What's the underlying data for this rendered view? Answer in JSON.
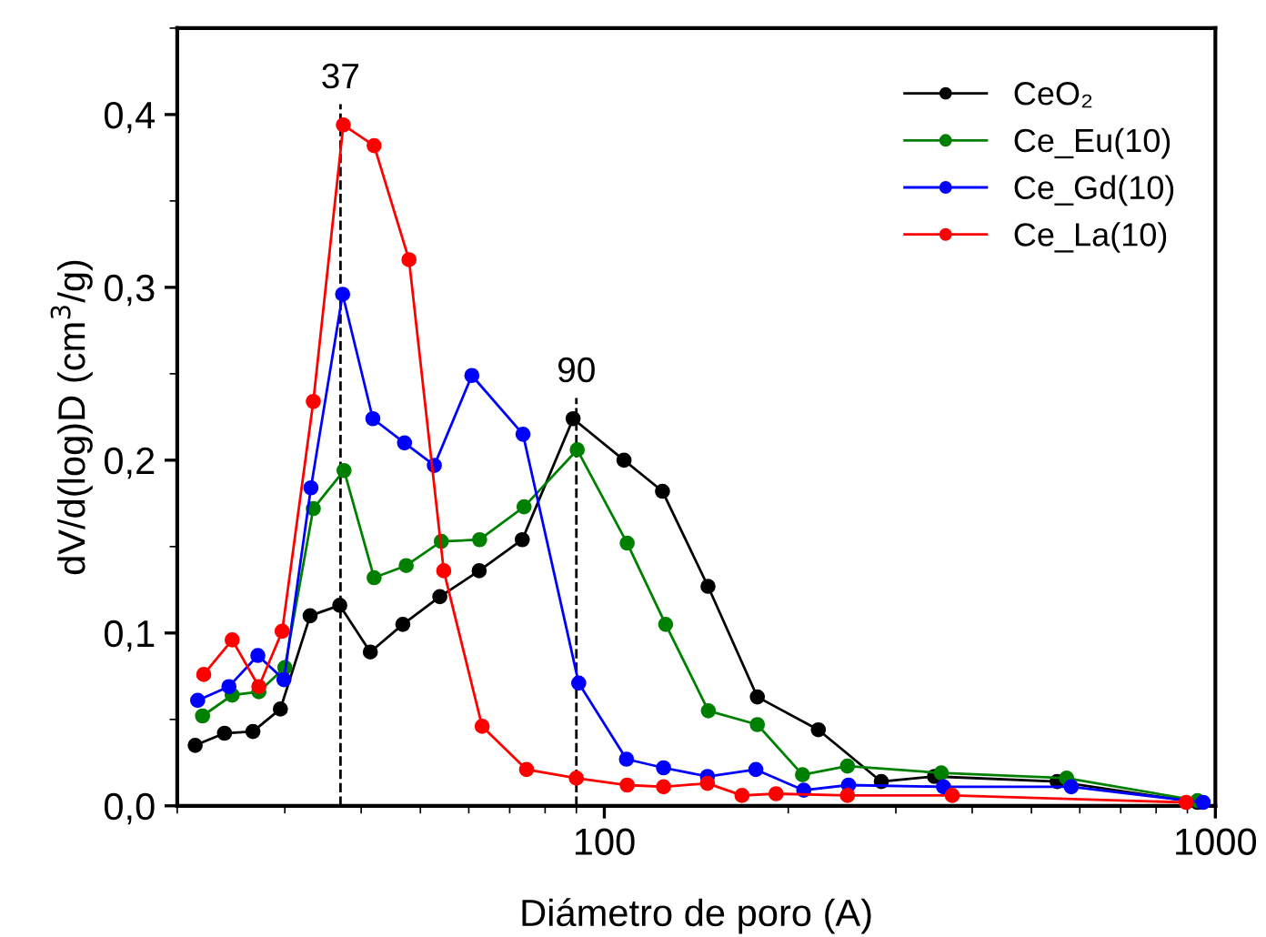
{
  "chart_data": {
    "type": "line",
    "xlabel": "Diámetro de poro (A)",
    "ylabel": "dV/d(log)D (cm$^{3}$/g)",
    "log": "x",
    "marker": "circle",
    "grid": false,
    "legend": "top right",
    "xlim": [
      20,
      1000
    ],
    "xticks": [
      100,
      1000
    ],
    "ylim": [
      0,
      0.45
    ],
    "yticks": [
      {
        "value": 0,
        "label": "0,0"
      },
      {
        "value": 0.1,
        "label": "0,1"
      },
      {
        "value": 0.2,
        "label": "0,2"
      },
      {
        "value": 0.3,
        "label": "0,3"
      },
      {
        "value": 0.4,
        "label": "0,4"
      }
    ],
    "ref_lines": [
      {
        "axis": "x",
        "value": 37,
        "label": "37",
        "color": "#000000",
        "line_style": "dashed"
      },
      {
        "axis": "x",
        "value": 90,
        "label": "90",
        "color": "#000000",
        "line_style": "dashed"
      }
    ],
    "series": [
      {
        "name": "CeO₂",
        "color": "#000000",
        "x": [
          21.4,
          23.9,
          26.6,
          29.5,
          33.0,
          36.9,
          41.4,
          46.8,
          53.8,
          62.4,
          73.4,
          88.9,
          107.7,
          124.5,
          147.8,
          178,
          224,
          284,
          347,
          551,
          935
        ],
        "values": [
          0.035,
          0.042,
          0.043,
          0.056,
          0.11,
          0.116,
          0.089,
          0.105,
          0.121,
          0.136,
          0.154,
          0.224,
          0.2,
          0.182,
          0.127,
          0.063,
          0.044,
          0.014,
          0.017,
          0.014,
          0.002
        ]
      },
      {
        "name": "Ce_Eu(10)",
        "color": "#008000",
        "x": [
          22.0,
          24.6,
          27.2,
          30.0,
          33.4,
          37.5,
          42.0,
          47.4,
          54.1,
          62.5,
          73.9,
          90.3,
          109,
          126,
          148,
          178,
          211,
          250,
          356,
          571,
          935
        ],
        "values": [
          0.052,
          0.064,
          0.066,
          0.08,
          0.172,
          0.194,
          0.132,
          0.139,
          0.153,
          0.154,
          0.173,
          0.206,
          0.152,
          0.105,
          0.055,
          0.047,
          0.018,
          0.023,
          0.019,
          0.016,
          0.003
        ]
      },
      {
        "name": "Ce_Gd(10)",
        "color": "#0000ff",
        "x": [
          21.6,
          24.3,
          27.1,
          29.9,
          33.1,
          37.3,
          41.8,
          47.1,
          52.7,
          60.7,
          73.6,
          90.8,
          108.7,
          125,
          147.5,
          177,
          212,
          251,
          359,
          581,
          955
        ],
        "values": [
          0.061,
          0.069,
          0.087,
          0.073,
          0.184,
          0.296,
          0.224,
          0.21,
          0.197,
          0.249,
          0.215,
          0.071,
          0.027,
          0.022,
          0.017,
          0.021,
          0.009,
          0.012,
          0.011,
          0.011,
          0.002
        ]
      },
      {
        "name": "Ce_La(10)",
        "color": "#ff0000",
        "x": [
          22.1,
          24.6,
          27.2,
          29.7,
          33.4,
          37.4,
          42.0,
          47.9,
          54.6,
          63.1,
          74.6,
          90.0,
          109,
          125,
          147.5,
          168,
          191,
          250,
          371,
          896
        ],
        "values": [
          0.076,
          0.096,
          0.069,
          0.101,
          0.234,
          0.394,
          0.382,
          0.316,
          0.136,
          0.046,
          0.021,
          0.016,
          0.012,
          0.011,
          0.013,
          0.006,
          0.007,
          0.006,
          0.006,
          0.002
        ]
      }
    ]
  }
}
